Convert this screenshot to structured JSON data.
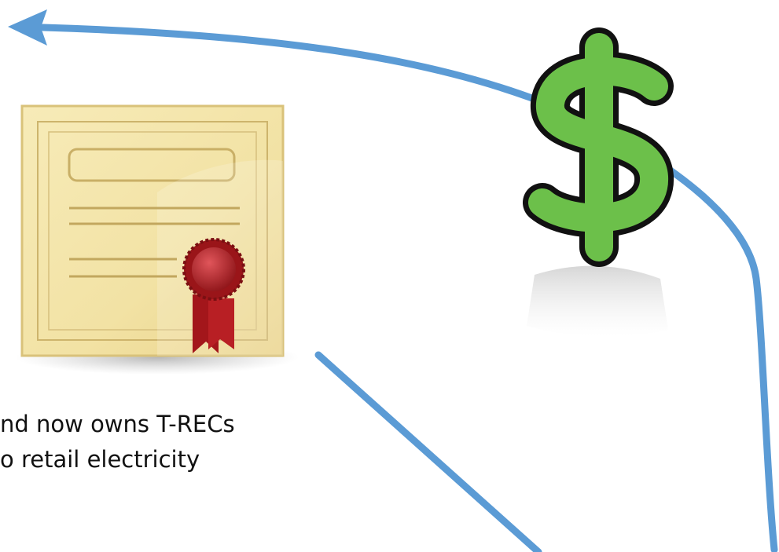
{
  "text": {
    "lines": [
      "nd now owns T-RECs",
      "o retail electricity"
    ]
  }
}
